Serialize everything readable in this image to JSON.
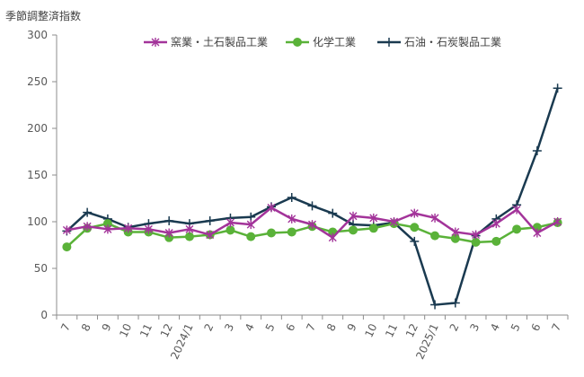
{
  "chart_data": {
    "type": "line",
    "title": "",
    "ylabel": "季節調整済指数",
    "xlabel": "",
    "ylim": [
      0,
      300
    ],
    "yticks": [
      0,
      50,
      100,
      150,
      200,
      250,
      300
    ],
    "categories": [
      "7",
      "8",
      "9",
      "10",
      "11",
      "12",
      "2024/1",
      "2",
      "3",
      "4",
      "5",
      "6",
      "7",
      "8",
      "9",
      "10",
      "11",
      "12",
      "2025/1",
      "2",
      "3",
      "4",
      "5",
      "6",
      "7"
    ],
    "grid": false,
    "legend_position": "top",
    "series": [
      {
        "name": "窯業・土石製品工業",
        "color": "#a3349a",
        "marker": "asterisk",
        "values": [
          91,
          95,
          92,
          93,
          92,
          88,
          92,
          86,
          99,
          97,
          115,
          103,
          97,
          83,
          106,
          104,
          100,
          109,
          104,
          89,
          86,
          98,
          113,
          88,
          100
        ]
      },
      {
        "name": "化学工業",
        "color": "#5ab239",
        "marker": "circle",
        "values": [
          73,
          93,
          98,
          89,
          89,
          83,
          84,
          86,
          91,
          84,
          88,
          89,
          95,
          89,
          91,
          93,
          98,
          94,
          85,
          82,
          78,
          79,
          92,
          94,
          99
        ]
      },
      {
        "name": "石油・石炭製品工業",
        "color": "#1a3a50",
        "marker": "plus",
        "values": [
          90,
          110,
          103,
          94,
          98,
          101,
          98,
          101,
          104,
          105,
          116,
          126,
          117,
          109,
          97,
          96,
          99,
          79,
          11,
          13,
          85,
          103,
          118,
          176,
          243
        ]
      }
    ]
  }
}
